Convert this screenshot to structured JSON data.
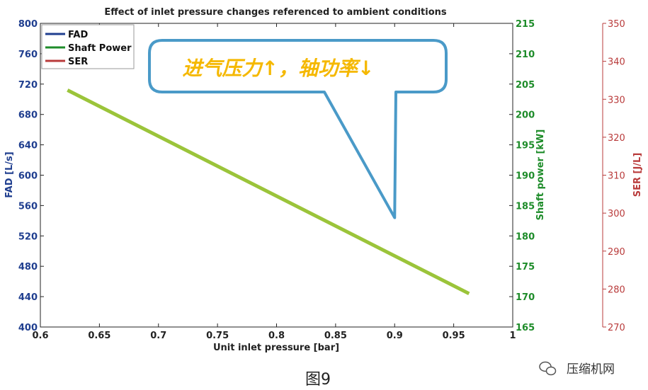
{
  "chart_data": {
    "type": "line",
    "title": "Effect of inlet pressure changes referenced to ambient conditions",
    "xlabel": "Unit inlet pressure [bar]",
    "xlim": [
      0.6,
      1.0
    ],
    "x_ticks": [
      "0.6",
      "0.65",
      "0.7",
      "0.75",
      "0.8",
      "0.85",
      "0.9",
      "0.95",
      "1"
    ],
    "axes": {
      "left": {
        "label": "FAD [L/s]",
        "lim": [
          400,
          800
        ],
        "ticks": [
          "400",
          "440",
          "480",
          "520",
          "560",
          "600",
          "640",
          "680",
          "720",
          "760",
          "800"
        ],
        "color": "#1f3e8f"
      },
      "right1": {
        "label": "Shaft power [kW]",
        "lim": [
          165,
          215
        ],
        "ticks": [
          "165",
          "170",
          "175",
          "180",
          "185",
          "190",
          "195",
          "200",
          "205",
          "210",
          "215"
        ],
        "color": "#1e8c2a"
      },
      "right2": {
        "label": "SER [J/L]",
        "lim": [
          270,
          350
        ],
        "ticks": [
          "270",
          "280",
          "290",
          "300",
          "310",
          "320",
          "330",
          "340",
          "350"
        ],
        "color": "#b93b3b"
      }
    },
    "legend": {
      "position": "top-left",
      "entries": [
        {
          "name": "FAD",
          "color": "#1f3e8f"
        },
        {
          "name": "Shaft Power",
          "color": "#1e8c2a"
        },
        {
          "name": "SER",
          "color": "#b93b3b"
        }
      ]
    },
    "series": [
      {
        "name": "Shaft Power",
        "axis": "right1",
        "color": "#9bc43a",
        "x": [
          0.623,
          0.963
        ],
        "y": [
          204,
          170.5
        ]
      }
    ],
    "annotation": {
      "text": "进气压力↑，轴功率↓",
      "color": "#f5b800",
      "x": 0.9,
      "y": 183
    },
    "grid": false
  },
  "caption": "图9",
  "watermark": "压缩机网"
}
